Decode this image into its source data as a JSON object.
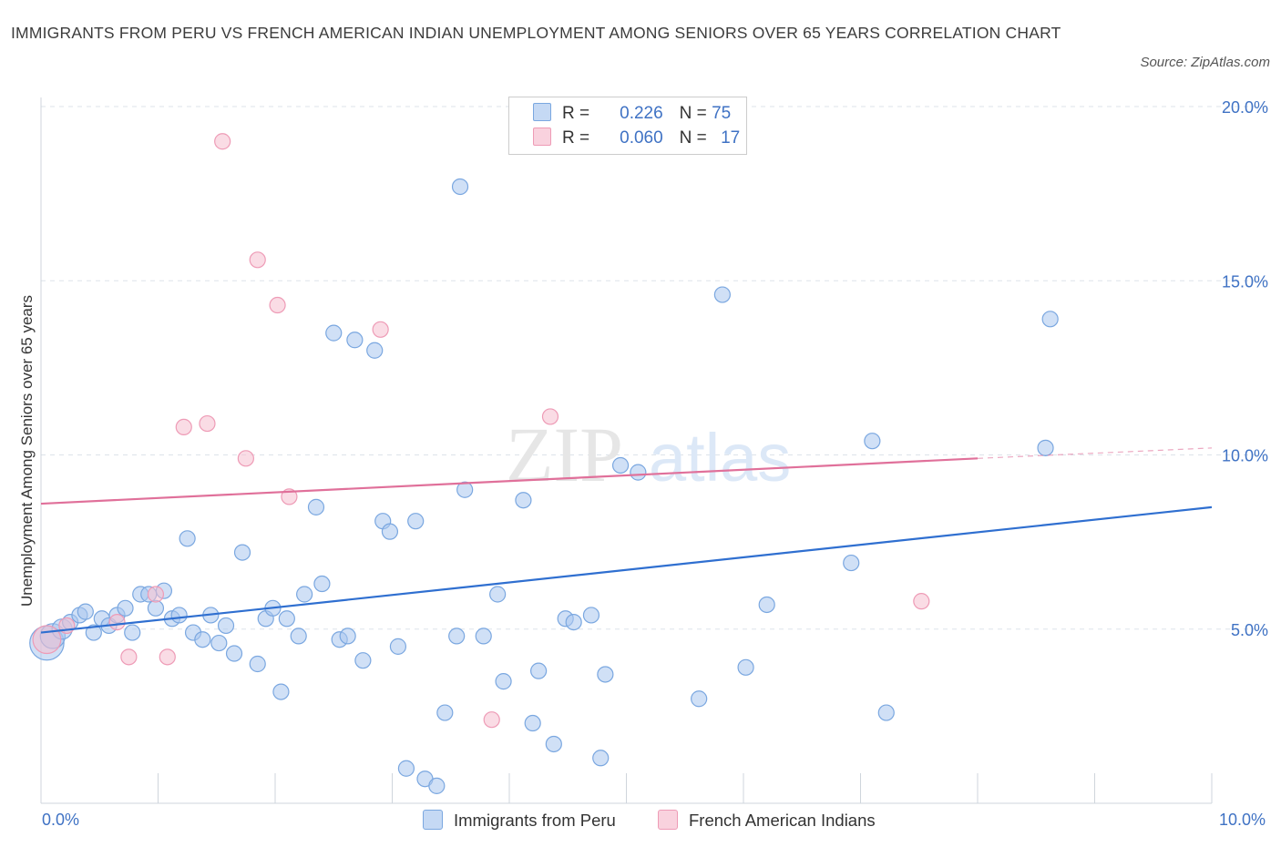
{
  "header": {
    "title": "IMMIGRANTS FROM PERU VS FRENCH AMERICAN INDIAN UNEMPLOYMENT AMONG SENIORS OVER 65 YEARS CORRELATION CHART",
    "source": "Source: ZipAtlas.com"
  },
  "watermark": {
    "part1": "ZIP",
    "part2": "atlas"
  },
  "legend_top": {
    "r_label": "R =",
    "n_label": "N =",
    "series1": {
      "r": "0.226",
      "n": "75"
    },
    "series2": {
      "r": "0.060",
      "n": "17"
    }
  },
  "legend_bottom": {
    "series1": "Immigrants from Peru",
    "series2": "French American Indians"
  },
  "colors": {
    "blue_fill": "#a9c7ef",
    "blue_stroke": "#7aa7e0",
    "blue_line": "#2f6fd0",
    "pink_fill": "#f6bfd0",
    "pink_stroke": "#ee9bb6",
    "pink_line": "#e0709a",
    "axis_text": "#3f72c4"
  },
  "chart_data": {
    "type": "scatter",
    "xlabel": "",
    "ylabel": "Unemployment Among Seniors over 65 years",
    "xlim": [
      0,
      10
    ],
    "ylim": [
      0,
      20
    ],
    "x_ticks": [
      {
        "value": 0,
        "label": "0.0%"
      },
      {
        "value": 10,
        "label": "10.0%"
      }
    ],
    "y_ticks": [
      {
        "value": 5,
        "label": "5.0%"
      },
      {
        "value": 10,
        "label": "10.0%"
      },
      {
        "value": 15,
        "label": "15.0%"
      },
      {
        "value": 20,
        "label": "20.0%"
      }
    ],
    "grid": true,
    "legend_position": "top-center",
    "series": [
      {
        "name": "Immigrants from Peru",
        "color": "#a9c7ef",
        "trend": {
          "x": [
            0,
            10
          ],
          "y": [
            4.9,
            8.5
          ]
        },
        "points": [
          {
            "x": 0.05,
            "y": 4.6,
            "s": 2.2
          },
          {
            "x": 0.1,
            "y": 4.8,
            "s": 1.6
          },
          {
            "x": 0.18,
            "y": 5.0,
            "s": 1.3
          },
          {
            "x": 0.25,
            "y": 5.2,
            "s": 1
          },
          {
            "x": 0.33,
            "y": 5.4,
            "s": 1
          },
          {
            "x": 0.38,
            "y": 5.5,
            "s": 1
          },
          {
            "x": 0.45,
            "y": 4.9,
            "s": 1
          },
          {
            "x": 0.52,
            "y": 5.3,
            "s": 1
          },
          {
            "x": 0.58,
            "y": 5.1,
            "s": 1
          },
          {
            "x": 0.65,
            "y": 5.4,
            "s": 1
          },
          {
            "x": 0.72,
            "y": 5.6,
            "s": 1
          },
          {
            "x": 0.78,
            "y": 4.9,
            "s": 1
          },
          {
            "x": 0.85,
            "y": 6.0,
            "s": 1
          },
          {
            "x": 0.92,
            "y": 6.0,
            "s": 1
          },
          {
            "x": 0.98,
            "y": 5.6,
            "s": 1
          },
          {
            "x": 1.05,
            "y": 6.1,
            "s": 1
          },
          {
            "x": 1.12,
            "y": 5.3,
            "s": 1
          },
          {
            "x": 1.18,
            "y": 5.4,
            "s": 1
          },
          {
            "x": 1.25,
            "y": 7.6,
            "s": 1
          },
          {
            "x": 1.3,
            "y": 4.9,
            "s": 1
          },
          {
            "x": 1.38,
            "y": 4.7,
            "s": 1
          },
          {
            "x": 1.45,
            "y": 5.4,
            "s": 1
          },
          {
            "x": 1.52,
            "y": 4.6,
            "s": 1
          },
          {
            "x": 1.58,
            "y": 5.1,
            "s": 1
          },
          {
            "x": 1.65,
            "y": 4.3,
            "s": 1
          },
          {
            "x": 1.72,
            "y": 7.2,
            "s": 1
          },
          {
            "x": 1.85,
            "y": 4.0,
            "s": 1
          },
          {
            "x": 1.92,
            "y": 5.3,
            "s": 1
          },
          {
            "x": 1.98,
            "y": 5.6,
            "s": 1
          },
          {
            "x": 2.05,
            "y": 3.2,
            "s": 1
          },
          {
            "x": 2.1,
            "y": 5.3,
            "s": 1
          },
          {
            "x": 2.2,
            "y": 4.8,
            "s": 1
          },
          {
            "x": 2.25,
            "y": 6.0,
            "s": 1
          },
          {
            "x": 2.35,
            "y": 8.5,
            "s": 1
          },
          {
            "x": 2.4,
            "y": 6.3,
            "s": 1
          },
          {
            "x": 2.5,
            "y": 13.5,
            "s": 1
          },
          {
            "x": 2.55,
            "y": 4.7,
            "s": 1
          },
          {
            "x": 2.62,
            "y": 4.8,
            "s": 1
          },
          {
            "x": 2.68,
            "y": 13.3,
            "s": 1
          },
          {
            "x": 2.75,
            "y": 4.1,
            "s": 1
          },
          {
            "x": 2.85,
            "y": 13.0,
            "s": 1
          },
          {
            "x": 2.92,
            "y": 8.1,
            "s": 1
          },
          {
            "x": 2.98,
            "y": 7.8,
            "s": 1
          },
          {
            "x": 3.05,
            "y": 4.5,
            "s": 1
          },
          {
            "x": 3.12,
            "y": 1.0,
            "s": 1
          },
          {
            "x": 3.2,
            "y": 8.1,
            "s": 1
          },
          {
            "x": 3.28,
            "y": 0.7,
            "s": 1
          },
          {
            "x": 3.38,
            "y": 0.5,
            "s": 1
          },
          {
            "x": 3.45,
            "y": 2.6,
            "s": 1
          },
          {
            "x": 3.58,
            "y": 17.7,
            "s": 1
          },
          {
            "x": 3.62,
            "y": 9.0,
            "s": 1
          },
          {
            "x": 3.78,
            "y": 4.8,
            "s": 1
          },
          {
            "x": 3.9,
            "y": 6.0,
            "s": 1
          },
          {
            "x": 3.95,
            "y": 3.5,
            "s": 1
          },
          {
            "x": 4.12,
            "y": 8.7,
            "s": 1
          },
          {
            "x": 4.25,
            "y": 3.8,
            "s": 1
          },
          {
            "x": 4.38,
            "y": 1.7,
            "s": 1
          },
          {
            "x": 4.48,
            "y": 5.3,
            "s": 1
          },
          {
            "x": 4.55,
            "y": 5.2,
            "s": 1
          },
          {
            "x": 4.7,
            "y": 5.4,
            "s": 1
          },
          {
            "x": 4.78,
            "y": 1.3,
            "s": 1
          },
          {
            "x": 4.82,
            "y": 3.7,
            "s": 1
          },
          {
            "x": 4.95,
            "y": 9.7,
            "s": 1
          },
          {
            "x": 5.1,
            "y": 9.5,
            "s": 1
          },
          {
            "x": 5.62,
            "y": 3.0,
            "s": 1
          },
          {
            "x": 5.82,
            "y": 14.6,
            "s": 1
          },
          {
            "x": 6.02,
            "y": 3.9,
            "s": 1
          },
          {
            "x": 6.2,
            "y": 5.7,
            "s": 1
          },
          {
            "x": 6.92,
            "y": 6.9,
            "s": 1
          },
          {
            "x": 7.1,
            "y": 10.4,
            "s": 1
          },
          {
            "x": 7.22,
            "y": 2.6,
            "s": 1
          },
          {
            "x": 8.58,
            "y": 10.2,
            "s": 1
          },
          {
            "x": 8.62,
            "y": 13.9,
            "s": 1
          },
          {
            "x": 4.2,
            "y": 2.3,
            "s": 1
          },
          {
            "x": 3.55,
            "y": 4.8,
            "s": 1
          }
        ]
      },
      {
        "name": "French American Indians",
        "color": "#f6bfd0",
        "trend": {
          "x": [
            0,
            8
          ],
          "y": [
            8.6,
            9.9
          ],
          "dashed_to": [
            10,
            10.2
          ]
        },
        "points": [
          {
            "x": 0.05,
            "y": 4.7,
            "s": 1.8
          },
          {
            "x": 0.22,
            "y": 5.1,
            "s": 1
          },
          {
            "x": 0.65,
            "y": 5.2,
            "s": 1
          },
          {
            "x": 0.75,
            "y": 4.2,
            "s": 1
          },
          {
            "x": 0.98,
            "y": 6.0,
            "s": 1
          },
          {
            "x": 1.08,
            "y": 4.2,
            "s": 1
          },
          {
            "x": 1.22,
            "y": 10.8,
            "s": 1
          },
          {
            "x": 1.42,
            "y": 10.9,
            "s": 1
          },
          {
            "x": 1.55,
            "y": 19.0,
            "s": 1
          },
          {
            "x": 1.75,
            "y": 9.9,
            "s": 1
          },
          {
            "x": 1.85,
            "y": 15.6,
            "s": 1
          },
          {
            "x": 2.02,
            "y": 14.3,
            "s": 1
          },
          {
            "x": 2.12,
            "y": 8.8,
            "s": 1
          },
          {
            "x": 2.9,
            "y": 13.6,
            "s": 1
          },
          {
            "x": 3.85,
            "y": 2.4,
            "s": 1
          },
          {
            "x": 4.35,
            "y": 11.1,
            "s": 1
          },
          {
            "x": 7.52,
            "y": 5.8,
            "s": 1
          }
        ]
      }
    ]
  }
}
